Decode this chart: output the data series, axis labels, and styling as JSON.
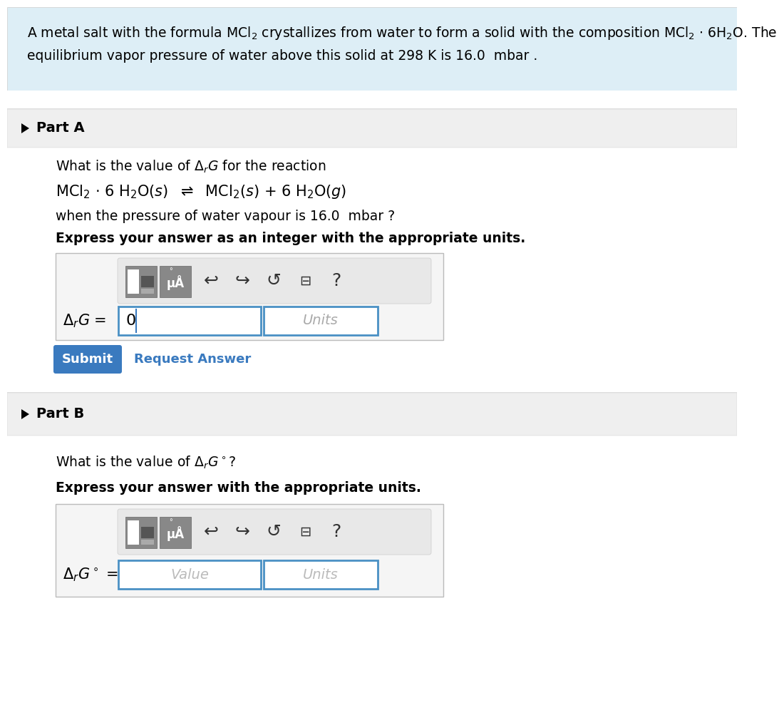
{
  "bg_color": "#ffffff",
  "header_bg": "#ddeef6",
  "part_bg": "#efefef",
  "border_color": "#cccccc",
  "blue_border": "#4a90c4",
  "submit_bg": "#3a7abf",
  "input_box_bg": "#f5f5f5",
  "toolbar_bg": "#e5e5e5",
  "header_line1": "A metal salt with the formula MCl$_2$ crystallizes from water to form a solid with the composition MCl$_2$ $\\cdot$ 6H$_2$O. The",
  "header_line2": "equilibrium vapor pressure of water above this solid at 298 K is 16.0  mbar .",
  "partA_label": "Part A",
  "partA_q1": "What is the value of $\\Delta_r G$ for the reaction",
  "partA_reaction": "MCl$_2$ $\\cdot$ 6 H$_2$O($s$)  $\\rightleftharpoons$  MCl$_2$($s$) + 6 H$_2$O($g$)",
  "partA_q2": "when the pressure of water vapour is 16.0  mbar ?",
  "partA_express": "Express your answer as an integer with the appropriate units.",
  "partA_label_field": "$\\Delta_r G$ =",
  "partA_value": "0",
  "submit_text": "Submit",
  "request_answer_text": "Request Answer",
  "partB_label": "Part B",
  "partB_q1": "What is the value of $\\Delta_r G^\\circ$?",
  "partB_express": "Express your answer with the appropriate units.",
  "partB_label_field": "$\\Delta_r G^\\circ$ =",
  "partB_value_placeholder": "Value",
  "units_placeholder": "Units",
  "request_answer_color": "#3a7abf"
}
